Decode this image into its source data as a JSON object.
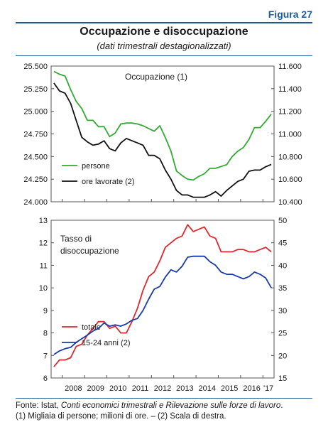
{
  "figure_label": "Figura 27",
  "title": "Occupazione e disoccupazione",
  "subtitle": "(dati trimestrali destagionalizzati)",
  "source": {
    "prefix": "Fonte: Istat, ",
    "italic": "Conti economici trimestrali e Rilevazione sulle forze di lavoro",
    "suffix": ".",
    "note": "(1) Migliaia di persone; milioni di ore. – (2) Scala di destra."
  },
  "chart_data": [
    {
      "type": "line",
      "panel_title": "Occupazione (1)",
      "x_quarters_start": "2007 Q3",
      "x_quarters_end": "2017 Q2",
      "xtick_labels": [
        "2008",
        "2009",
        "2010",
        "2011",
        "2012",
        "2013",
        "2014",
        "2015",
        "2016",
        "'17"
      ],
      "ylim_left": [
        24000,
        25500
      ],
      "yticks_left": [
        "24.000",
        "24.250",
        "24.500",
        "24.750",
        "25.000",
        "25.250",
        "25.500"
      ],
      "ylim_right": [
        10400,
        11600
      ],
      "yticks_right": [
        "10.400",
        "10.600",
        "10.800",
        "11.000",
        "11.200",
        "11.400",
        "11.600"
      ],
      "series": [
        {
          "name": "persone",
          "axis": "left",
          "color": "#33aa33",
          "values": [
            25440,
            25410,
            25390,
            25240,
            25110,
            25030,
            24900,
            24900,
            24830,
            24830,
            24720,
            24760,
            24860,
            24870,
            24870,
            24860,
            24840,
            24810,
            24780,
            24840,
            24710,
            24560,
            24340,
            24290,
            24250,
            24240,
            24280,
            24310,
            24370,
            24370,
            24390,
            24410,
            24500,
            24560,
            24600,
            24690,
            24820,
            24820,
            24890,
            24970
          ]
        },
        {
          "name": "ore lavorate (2)",
          "axis": "right",
          "color": "#111111",
          "values": [
            11450,
            11380,
            11360,
            11270,
            11120,
            10970,
            10930,
            10900,
            10910,
            10940,
            10870,
            10850,
            10920,
            10960,
            10940,
            10920,
            10900,
            10810,
            10810,
            10780,
            10680,
            10600,
            10500,
            10460,
            10460,
            10440,
            10440,
            10440,
            10460,
            10490,
            10450,
            10500,
            10540,
            10580,
            10600,
            10670,
            10680,
            10680,
            10710,
            10730
          ]
        }
      ]
    },
    {
      "type": "line",
      "panel_title": "Tasso di\ndisoccupazione",
      "x_quarters_start": "2007 Q3",
      "x_quarters_end": "2017 Q2",
      "xtick_labels": [
        "2008",
        "2009",
        "2010",
        "2011",
        "2012",
        "2013",
        "2014",
        "2015",
        "2016",
        "'17"
      ],
      "ylim_left": [
        6,
        13
      ],
      "yticks_left": [
        "6",
        "7",
        "8",
        "9",
        "10",
        "11",
        "12",
        "13"
      ],
      "ylim_right": [
        15,
        50
      ],
      "yticks_right": [
        "15",
        "20",
        "25",
        "30",
        "35",
        "40",
        "45",
        "50"
      ],
      "series": [
        {
          "name": "totale",
          "axis": "left",
          "color": "#e0282f",
          "values": [
            6.5,
            6.8,
            6.8,
            6.9,
            7.4,
            7.5,
            7.9,
            8.2,
            8.5,
            8.5,
            8.2,
            8.3,
            8.0,
            8.0,
            8.5,
            9.1,
            9.9,
            10.5,
            10.7,
            11.2,
            11.8,
            12.0,
            12.2,
            12.3,
            12.8,
            12.5,
            12.6,
            12.7,
            12.3,
            12.2,
            11.6,
            11.6,
            11.6,
            11.7,
            11.7,
            11.6,
            11.6,
            11.7,
            11.8,
            11.6
          ]
        },
        {
          "name": "15-24 anni (2)",
          "axis": "right",
          "color": "#1a3aa8",
          "values": [
            20.2,
            21.0,
            21.5,
            21.8,
            22.9,
            23.7,
            24.5,
            25.4,
            26.0,
            27.2,
            26.5,
            26.8,
            26.5,
            27.0,
            27.8,
            28.2,
            30.0,
            32.5,
            34.7,
            35.3,
            37.4,
            39.0,
            38.5,
            39.8,
            41.8,
            42.0,
            42.0,
            42.0,
            40.8,
            40.0,
            38.5,
            38.0,
            38.0,
            37.5,
            37.0,
            37.5,
            38.5,
            38.0,
            37.2,
            35.0
          ]
        }
      ]
    }
  ]
}
